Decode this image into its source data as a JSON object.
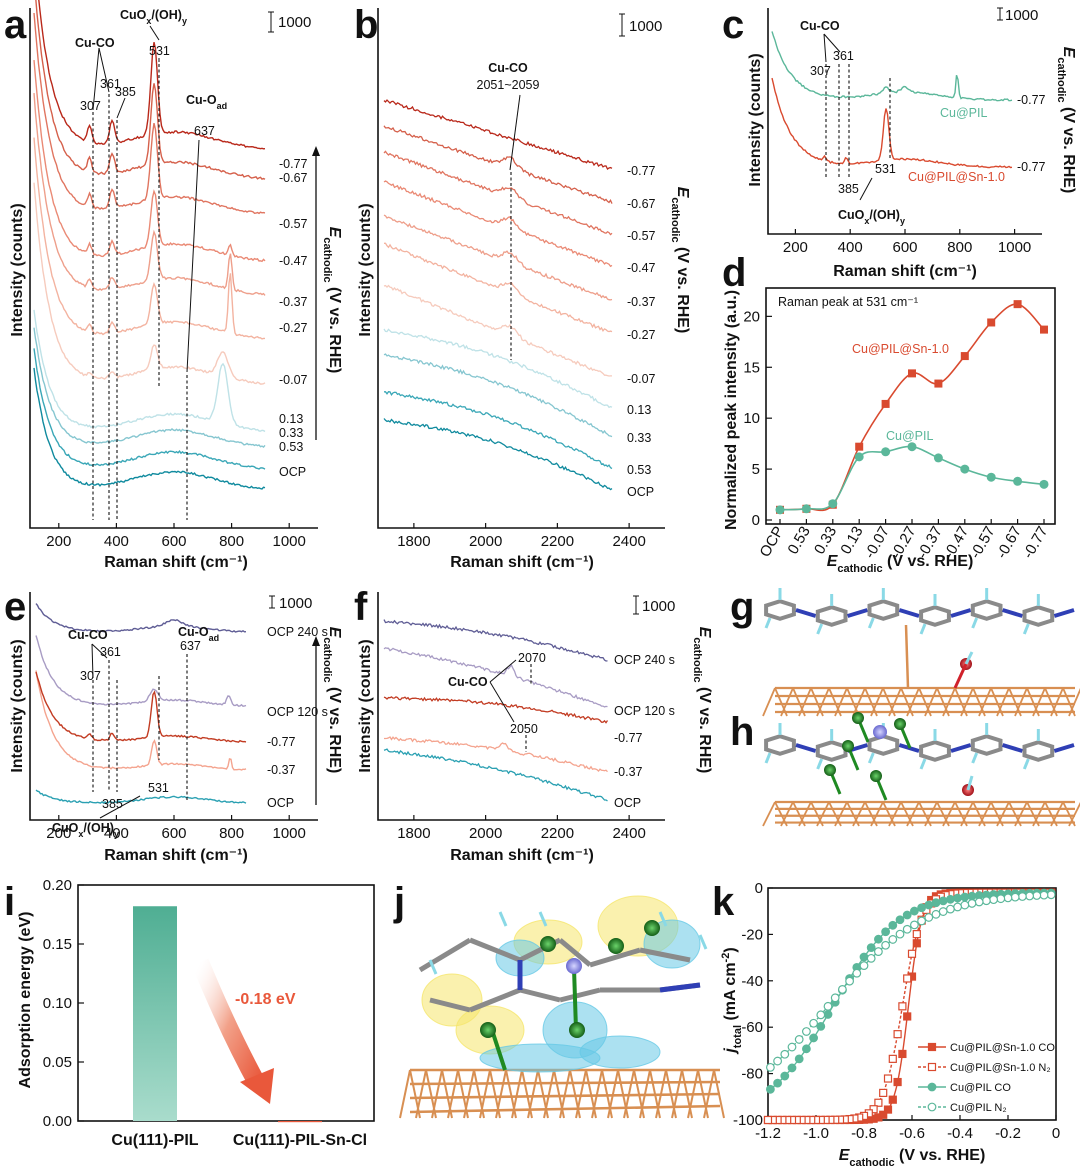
{
  "colors": {
    "ramp": [
      "#0f8a9e",
      "#3aa7b7",
      "#86c6d0",
      "#bfe2e7",
      "#f6cbbd",
      "#f3b3a0",
      "#ee9f8b",
      "#ea8a75",
      "#e07560",
      "#d5604b",
      "#c7442f",
      "#b9281a"
    ],
    "ocp_series": [
      "#2aa0b2",
      "#f4a48f",
      "#c23b22",
      "#a89cc4",
      "#5f5d95"
    ],
    "cu_pil": "#5bb79a",
    "cu_pil_sn": "#d94a2f",
    "bar_pil": "#5bb59b",
    "arrow": "#e9583b",
    "cu_slab": "#d88f52",
    "carbon": "#8a8a8a",
    "nitrogen": "#2f3fb5",
    "hydrogen": "#8ad9e6",
    "oxygen": "#d0222b",
    "chlorine": "#1f8a22",
    "tin": "#8f8fe0",
    "iso_yellow": "#f5e66b",
    "iso_cyan": "#67c9e6"
  },
  "chart_data": [
    {
      "panel": "a",
      "type": "line",
      "xlabel": "Raman shift (cm⁻¹)",
      "ylabel": "Intensity (counts)",
      "xlim": [
        100,
        1100
      ],
      "xticks": [
        "200",
        "400",
        "600",
        "800",
        "1000"
      ],
      "scale_bar": "1000",
      "series_labels": [
        "OCP",
        "0.53",
        "0.33",
        "0.13",
        "-0.07",
        "-0.27",
        "-0.37",
        "-0.47",
        "-0.57",
        "-0.67",
        "-0.77"
      ],
      "peaks": [
        {
          "name": "Cu-CO",
          "labels": [
            "307",
            "361"
          ]
        },
        {
          "name": "CuOx/(OH)y",
          "labels": [
            "385",
            "531"
          ]
        },
        {
          "name": "Cu-Oad",
          "labels": [
            "637"
          ]
        }
      ],
      "side_axis": "E cathodic (V vs. RHE)"
    },
    {
      "panel": "b",
      "type": "line",
      "xlabel": "Raman shift (cm⁻¹)",
      "ylabel": "Intensity (counts)",
      "xlim": [
        1700,
        2500
      ],
      "xticks": [
        "1800",
        "2000",
        "2200",
        "2400"
      ],
      "scale_bar": "1000",
      "series_labels": [
        "OCP",
        "0.53",
        "0.33",
        "0.13",
        "-0.07",
        "-0.27",
        "-0.37",
        "-0.47",
        "-0.57",
        "-0.67",
        "-0.77"
      ],
      "annotation": "Cu-CO",
      "annotation_range": "2051~2059",
      "side_axis": "E cathodic (V vs. RHE)"
    },
    {
      "panel": "c",
      "type": "line",
      "xlabel": "Raman shift (cm⁻¹)",
      "ylabel": "Intensity (counts)",
      "xlim": [
        100,
        1100
      ],
      "xticks": [
        "200",
        "400",
        "600",
        "800",
        "1000"
      ],
      "scale_bar": "1000",
      "series": [
        {
          "name": "Cu@PIL",
          "potential": "-0.77"
        },
        {
          "name": "Cu@PIL@Sn-1.0",
          "potential": "-0.77"
        }
      ],
      "peaks": [
        "307",
        "361",
        "385",
        "531"
      ],
      "peak_groups": [
        "Cu-CO",
        "CuOx/(OH)y"
      ],
      "side_axis": "E cathodic (V vs. RHE)"
    },
    {
      "panel": "d",
      "type": "line",
      "title": "Raman peak at 531 cm⁻¹",
      "xlabel": "E cathodic (V vs. RHE)",
      "ylabel": "Normalized peak intensity (a.u.)",
      "categories": [
        "OCP",
        "0.53",
        "0.33",
        "0.13",
        "-0.07",
        "-0.27",
        "-0.37",
        "-0.47",
        "-0.57",
        "-0.67",
        "-0.77"
      ],
      "ylim": [
        0,
        22
      ],
      "yticks": [
        0,
        5,
        10,
        15,
        20
      ],
      "series": [
        {
          "name": "Cu@PIL@Sn-1.0",
          "values": [
            1.0,
            1.1,
            1.5,
            7.2,
            11.4,
            14.4,
            13.4,
            16.1,
            19.4,
            21.2,
            18.7
          ]
        },
        {
          "name": "Cu@PIL",
          "values": [
            1.0,
            1.1,
            1.6,
            6.2,
            6.7,
            7.2,
            6.1,
            5.0,
            4.2,
            3.8,
            3.5
          ]
        }
      ]
    },
    {
      "panel": "e",
      "type": "line",
      "xlabel": "Raman shift (cm⁻¹)",
      "ylabel": "Intensity (counts)",
      "xlim": [
        100,
        1100
      ],
      "xticks": [
        "200",
        "400",
        "600",
        "800",
        "1000"
      ],
      "scale_bar": "1000",
      "series_labels": [
        "OCP",
        "-0.37",
        "-0.77",
        "OCP 120 s",
        "OCP 240 s"
      ],
      "peaks": [
        "307",
        "361",
        "385",
        "531",
        "637"
      ],
      "peak_groups": [
        "Cu-CO",
        "CuOx/(OH)y",
        "Cu-Oad"
      ],
      "side_axis": "E cathodic (V vs. RHE)"
    },
    {
      "panel": "f",
      "type": "line",
      "xlabel": "Raman shift (cm⁻¹)",
      "ylabel": "Intensity (counts)",
      "xlim": [
        1700,
        2500
      ],
      "xticks": [
        "1800",
        "2000",
        "2200",
        "2400"
      ],
      "scale_bar": "1000",
      "series_labels": [
        "OCP",
        "-0.37",
        "-0.77",
        "OCP 120 s",
        "OCP 240 s"
      ],
      "annotation": "Cu-CO",
      "peaks": [
        "2050",
        "2070"
      ],
      "side_axis": "E cathodic (V vs. RHE)"
    },
    {
      "panel": "i",
      "type": "bar",
      "ylabel": "Adsorption energy (eV)",
      "categories": [
        "Cu(111)-PIL",
        "Cu(111)-PIL-Sn-Cl"
      ],
      "values": [
        0.182,
        0.0
      ],
      "ylim": [
        0,
        0.2
      ],
      "yticks": [
        "0.00",
        "0.05",
        "0.10",
        "0.15",
        "0.20"
      ],
      "annotation": "-0.18 eV"
    },
    {
      "panel": "k",
      "type": "line",
      "xlabel": "E cathodic (V vs. RHE)",
      "ylabel": "j total (mA cm⁻²)",
      "xlim": [
        -1.2,
        0
      ],
      "ylim": [
        -100,
        0
      ],
      "xticks": [
        "-1.2",
        "-1.0",
        "-0.8",
        "-0.6",
        "-0.4",
        "-0.2",
        "0"
      ],
      "yticks": [
        "0",
        "-20",
        "-40",
        "-60",
        "-80",
        "-100"
      ],
      "series": [
        {
          "name": "Cu@PIL@Sn-1.0 CO",
          "onset": -0.69,
          "end": -0.61
        },
        {
          "name": "Cu@PIL@Sn-1.0 N₂",
          "onset": -0.72,
          "end": -0.63
        },
        {
          "name": "Cu@PIL CO",
          "onset": -0.92,
          "end": -1.1
        },
        {
          "name": "Cu@PIL N₂",
          "onset": -0.85,
          "end": -1.18
        }
      ]
    }
  ],
  "panels": {
    "a": {
      "label": "a",
      "cuco": "Cu-CO",
      "cuox": "CuO",
      "cuox_x": "x",
      "cuox_rest": "/(OH)",
      "cuox_y": "y",
      "cuoad": "Cu-O",
      "cuoad_sub": "ad",
      "p307": "307",
      "p361": "361",
      "p385": "385",
      "p531": "531",
      "p637": "637"
    },
    "b": {
      "label": "b"
    },
    "c": {
      "label": "c",
      "legend_pil": "Cu@PIL",
      "legend_sn": "Cu@PIL@Sn-1.0",
      "pot1": "-0.77",
      "pot2": "-0.77"
    },
    "d": {
      "label": "d"
    },
    "e": {
      "label": "e"
    },
    "f": {
      "label": "f"
    },
    "g": {
      "label": "g"
    },
    "h": {
      "label": "h"
    },
    "i": {
      "label": "i"
    },
    "j": {
      "label": "j"
    },
    "k": {
      "label": "k"
    }
  },
  "side_axis_text": {
    "e": "E",
    "sub": "cathodic",
    "rest": " (V vs. RHE)"
  }
}
